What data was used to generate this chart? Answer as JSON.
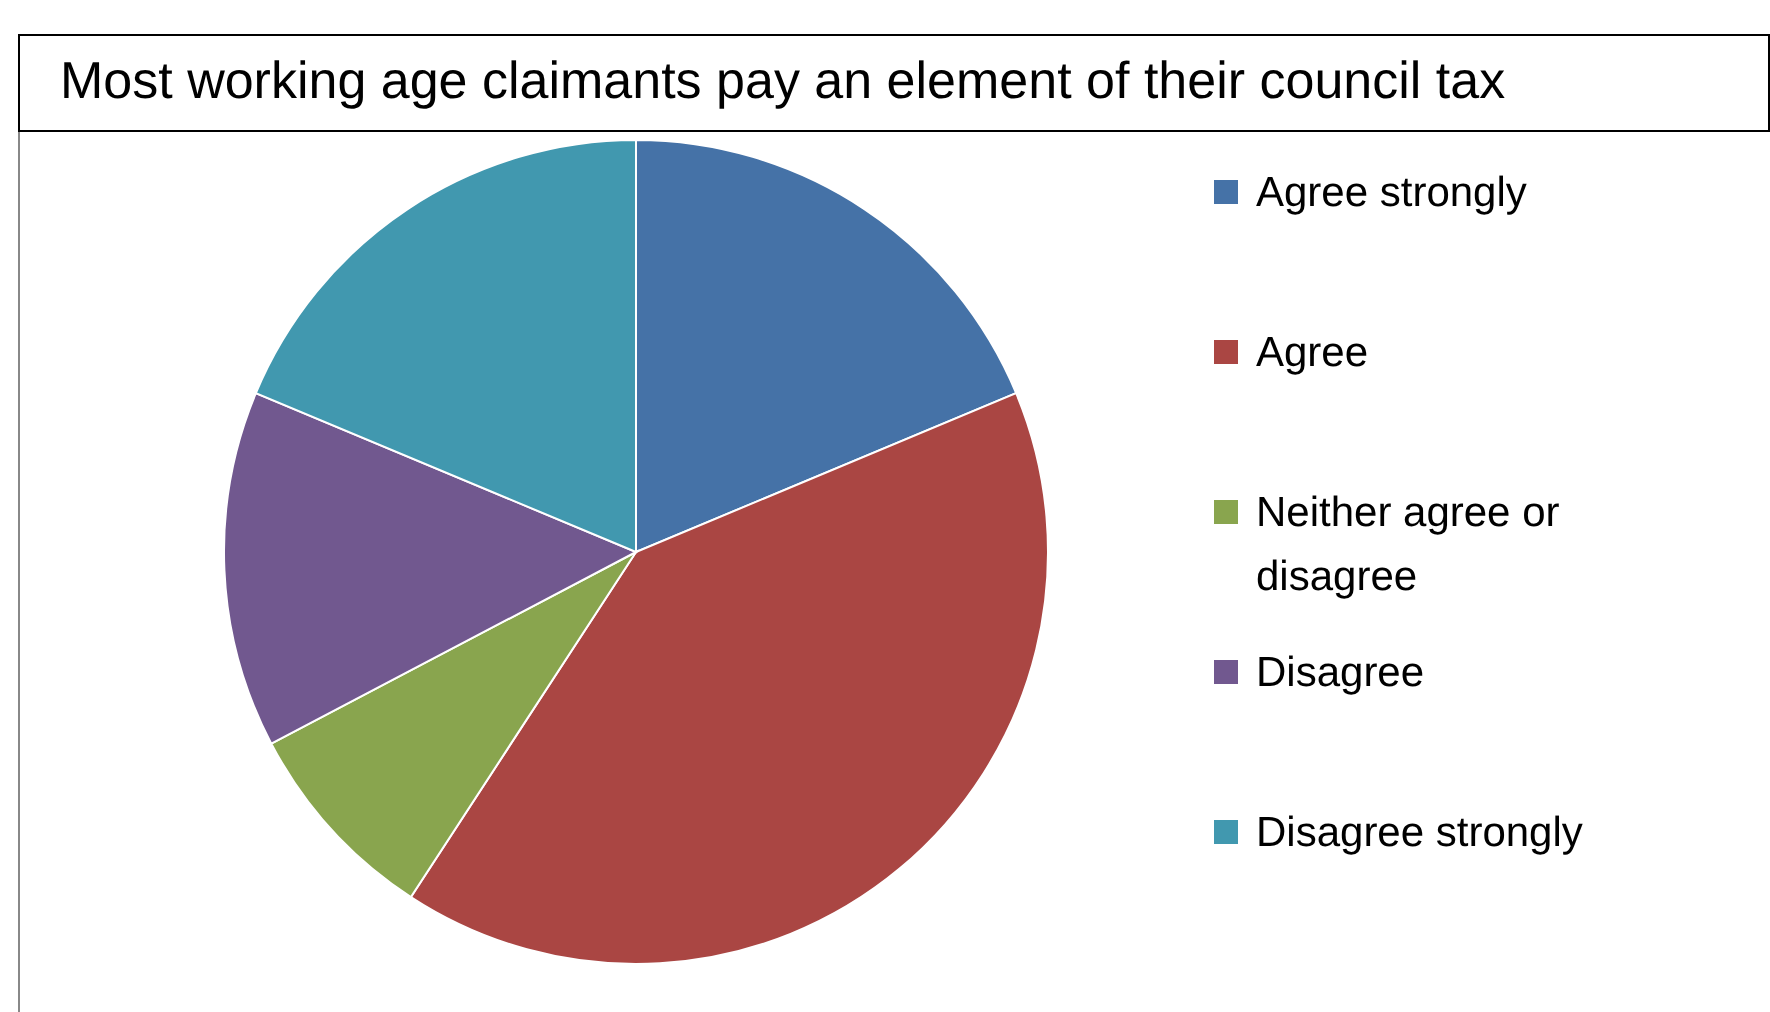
{
  "chart_data": {
    "type": "pie",
    "title": "Most working age claimants pay an element of their council tax",
    "categories": [
      "Agree strongly",
      "Agree",
      "Neither agree or disagree",
      "Disagree",
      "Disagree strongly"
    ],
    "values": [
      18.7,
      40.5,
      8.1,
      14,
      18.7
    ],
    "colors": [
      "#4572a7",
      "#aa4643",
      "#89a54e",
      "#71588f",
      "#4198af"
    ],
    "legend": "right"
  }
}
